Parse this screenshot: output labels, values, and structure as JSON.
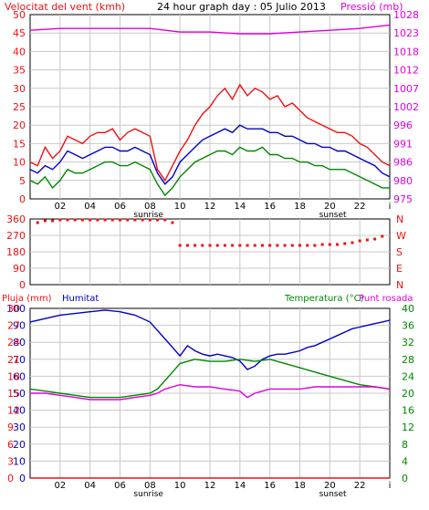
{
  "header": {
    "left_title": "Velocitat del vent (kmh)",
    "center_title": "24 hour graph day : 05 Julio 2013",
    "right_title": "Pressió (mb)"
  },
  "colors": {
    "red": "#ee1111",
    "blue": "#0000c8",
    "green": "#008800",
    "magenta": "#dd00dd",
    "grid": "#c8c8c8",
    "frame": "#000000"
  },
  "time_axis": {
    "ticks": [
      "02",
      "04",
      "06",
      "08",
      "10",
      "12",
      "14",
      "16",
      "18",
      "20",
      "22",
      "i"
    ],
    "sunrise_label": "sunrise",
    "sunset_label": "sunset"
  },
  "chart_data": [
    {
      "type": "line",
      "title": "24 hour graph day : 05 Julio 2013",
      "x_unit": "hour",
      "xlim": [
        0,
        24
      ],
      "left_axis": {
        "label": "Velocitat del vent (kmh)",
        "ticks": [
          "0",
          "5",
          "10",
          "15",
          "20",
          "25",
          "30",
          "35",
          "40",
          "45",
          "50"
        ],
        "range": [
          0,
          50
        ]
      },
      "right_axis": {
        "label": "Pressió (mb)",
        "ticks": [
          "975",
          "980",
          "986",
          "991",
          "996",
          "1002",
          "1007",
          "1012",
          "1018",
          "1023",
          "1028"
        ],
        "range": [
          975,
          1028
        ]
      },
      "series": [
        {
          "axis": "left",
          "color": "red",
          "x": [
            0,
            0.5,
            1,
            1.5,
            2,
            2.5,
            3,
            3.5,
            4,
            4.5,
            5,
            5.5,
            6,
            6.5,
            7,
            7.5,
            8,
            8.5,
            9,
            9.5,
            10,
            10.5,
            11,
            11.5,
            12,
            12.5,
            13,
            13.5,
            14,
            14.5,
            15,
            15.5,
            16,
            16.5,
            17,
            17.5,
            18,
            18.5,
            19,
            19.5,
            20,
            20.5,
            21,
            21.5,
            22,
            22.5,
            23,
            23.5,
            24
          ],
          "y": [
            10,
            9,
            14,
            11,
            13,
            17,
            16,
            15,
            17,
            18,
            18,
            19,
            16,
            18,
            19,
            18,
            17,
            8,
            5,
            9,
            13,
            16,
            20,
            23,
            25,
            28,
            30,
            27,
            31,
            28,
            30,
            29,
            27,
            28,
            25,
            26,
            24,
            22,
            21,
            20,
            19,
            18,
            18,
            17,
            15,
            14,
            12,
            10,
            9
          ]
        },
        {
          "axis": "left",
          "color": "blue",
          "x": [
            0,
            0.5,
            1,
            1.5,
            2,
            2.5,
            3,
            3.5,
            4,
            4.5,
            5,
            5.5,
            6,
            6.5,
            7,
            7.5,
            8,
            8.5,
            9,
            9.5,
            10,
            10.5,
            11,
            11.5,
            12,
            12.5,
            13,
            13.5,
            14,
            14.5,
            15,
            15.5,
            16,
            16.5,
            17,
            17.5,
            18,
            18.5,
            19,
            19.5,
            20,
            20.5,
            21,
            21.5,
            22,
            22.5,
            23,
            23.5,
            24
          ],
          "y": [
            8,
            7,
            9,
            8,
            10,
            13,
            12,
            11,
            12,
            13,
            14,
            14,
            13,
            13,
            14,
            13,
            12,
            7,
            4,
            6,
            10,
            12,
            14,
            16,
            17,
            18,
            19,
            18,
            20,
            19,
            19,
            19,
            18,
            18,
            17,
            17,
            16,
            15,
            15,
            14,
            14,
            13,
            13,
            12,
            11,
            10,
            9,
            7,
            6
          ]
        },
        {
          "axis": "left",
          "color": "green",
          "x": [
            0,
            0.5,
            1,
            1.5,
            2,
            2.5,
            3,
            3.5,
            4,
            4.5,
            5,
            5.5,
            6,
            6.5,
            7,
            7.5,
            8,
            8.5,
            9,
            9.5,
            10,
            10.5,
            11,
            11.5,
            12,
            12.5,
            13,
            13.5,
            14,
            14.5,
            15,
            15.5,
            16,
            16.5,
            17,
            17.5,
            18,
            18.5,
            19,
            19.5,
            20,
            20.5,
            21,
            21.5,
            22,
            22.5,
            23,
            23.5,
            24
          ],
          "y": [
            5,
            4,
            6,
            3,
            5,
            8,
            7,
            7,
            8,
            9,
            10,
            10,
            9,
            9,
            10,
            9,
            8,
            4,
            1,
            3,
            6,
            8,
            10,
            11,
            12,
            13,
            13,
            12,
            14,
            13,
            13,
            14,
            12,
            12,
            11,
            11,
            10,
            10,
            9,
            9,
            8,
            8,
            8,
            7,
            6,
            5,
            4,
            3,
            3
          ]
        },
        {
          "axis": "right",
          "color": "magenta",
          "x": [
            0,
            2,
            4,
            6,
            8,
            10,
            12,
            14,
            16,
            18,
            20,
            22,
            24
          ],
          "y": [
            1023.5,
            1024,
            1024,
            1024,
            1024,
            1023,
            1023,
            1022.5,
            1022.5,
            1023,
            1023.5,
            1024,
            1025
          ]
        }
      ]
    },
    {
      "type": "scatter",
      "x_unit": "hour",
      "xlim": [
        0,
        24
      ],
      "left_axis": {
        "ticks": [
          "0",
          "90",
          "180",
          "270",
          "360"
        ],
        "range": [
          0,
          360
        ]
      },
      "right_axis": {
        "ticks": [
          "N",
          "E",
          "S",
          "W",
          "N"
        ]
      },
      "series": [
        {
          "color": "red",
          "x": [
            0.5,
            1,
            1.5,
            2,
            2.5,
            3,
            3.5,
            4,
            4.5,
            5,
            5.5,
            6,
            6.5,
            7,
            7.5,
            8,
            8.5,
            9,
            9.5,
            10,
            10.5,
            11,
            11.5,
            12,
            12.5,
            13,
            13.5,
            14,
            14.5,
            15,
            15.5,
            16,
            16.5,
            17,
            17.5,
            18,
            18.5,
            19,
            19.5,
            20,
            20.5,
            21,
            21.5,
            22,
            22.5,
            23,
            23.5
          ],
          "y": [
            340,
            350,
            350,
            355,
            355,
            355,
            355,
            355,
            355,
            355,
            355,
            355,
            355,
            355,
            355,
            355,
            355,
            355,
            340,
            215,
            215,
            215,
            215,
            215,
            215,
            215,
            215,
            215,
            215,
            215,
            215,
            215,
            215,
            215,
            215,
            215,
            215,
            215,
            220,
            220,
            220,
            225,
            230,
            240,
            245,
            250,
            265
          ]
        }
      ]
    },
    {
      "type": "line",
      "x_unit": "hour",
      "xlim": [
        0,
        24
      ],
      "left_axis": {
        "label": "Pluja (mm)",
        "label2": "Humitat",
        "ticks": [
          "0",
          "10",
          "20",
          "30",
          "40",
          "50",
          "60",
          "70",
          "80",
          "90",
          "100"
        ],
        "range": [
          0,
          100
        ]
      },
      "left_axis_inner": {
        "ticks": [
          "0",
          "3",
          "6",
          "9",
          "12",
          "15",
          "18",
          "21",
          "24",
          "27",
          "30"
        ],
        "range": [
          0,
          30
        ]
      },
      "right_axis": {
        "label": "Temperatura (°C)",
        "label2": "Punt rosada",
        "ticks": [
          "0",
          "4",
          "8",
          "12",
          "16",
          "20",
          "24",
          "28",
          "32",
          "36",
          "40"
        ],
        "range": [
          0,
          40
        ]
      },
      "series": [
        {
          "name": "Humitat",
          "axis": "left",
          "color": "blue",
          "x": [
            0,
            1,
            2,
            3,
            4,
            5,
            6,
            7,
            8,
            8.5,
            9,
            9.5,
            10,
            10.5,
            11,
            11.5,
            12,
            12.5,
            13,
            13.5,
            14,
            14.5,
            15,
            15.5,
            16,
            16.5,
            17,
            17.5,
            18,
            18.5,
            19,
            19.5,
            20,
            20.5,
            21,
            21.5,
            22,
            22.5,
            23,
            23.5,
            24
          ],
          "y": [
            92,
            94,
            96,
            97,
            98,
            99,
            98,
            96,
            92,
            87,
            82,
            77,
            72,
            78,
            75,
            73,
            72,
            73,
            72,
            71,
            69,
            64,
            66,
            70,
            72,
            73,
            73,
            74,
            75,
            77,
            78,
            80,
            82,
            84,
            86,
            88,
            89,
            90,
            91,
            92,
            93
          ]
        },
        {
          "name": "Temperatura (°C)",
          "axis": "right",
          "color": "green",
          "x": [
            0,
            1,
            2,
            3,
            4,
            5,
            6,
            7,
            8,
            8.5,
            9,
            9.5,
            10,
            11,
            12,
            13,
            14,
            15,
            16,
            17,
            18,
            19,
            20,
            21,
            22,
            23,
            24
          ],
          "y": [
            21,
            20.5,
            20,
            19.5,
            19,
            19,
            19,
            19.5,
            20,
            21,
            23,
            25,
            27,
            28,
            27.5,
            27.5,
            28,
            27.5,
            28,
            27,
            26,
            25,
            24,
            23,
            22,
            21.5,
            21
          ]
        },
        {
          "name": "Punt rosada",
          "axis": "right",
          "color": "magenta",
          "x": [
            0,
            1,
            2,
            3,
            4,
            5,
            6,
            7,
            8,
            8.5,
            9,
            9.5,
            10,
            11,
            12,
            13,
            14,
            14.5,
            15,
            15.5,
            16,
            17,
            18,
            19,
            20,
            21,
            22,
            23,
            24
          ],
          "y": [
            20,
            20,
            19.5,
            19,
            18.5,
            18.5,
            18.5,
            19,
            19.5,
            20,
            21,
            21.5,
            22,
            21.5,
            21.5,
            21,
            20.5,
            19,
            20,
            20.5,
            21,
            21,
            21,
            21.5,
            21.5,
            21.5,
            21.5,
            21.5,
            21
          ]
        },
        {
          "name": "Pluja (mm)",
          "axis": "left",
          "color": "red",
          "x": [
            0,
            24
          ],
          "y": [
            0,
            0
          ]
        }
      ]
    }
  ]
}
